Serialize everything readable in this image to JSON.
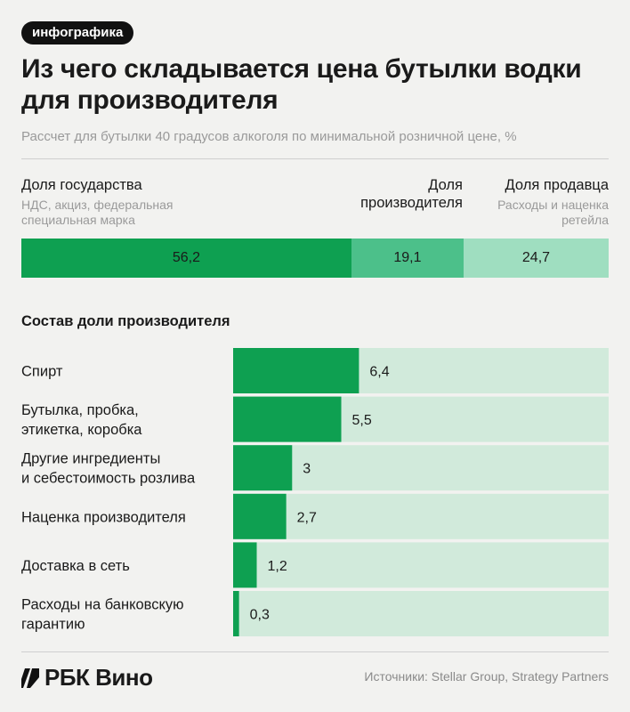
{
  "tag": "инфографика",
  "title": "Из чего складывается цена бутылки водки для производителя",
  "subtitle": "Рассчет для бутылки 40 градусов алкоголя по минимальной розничной цене, %",
  "colors": {
    "dark_green": "#0ea051",
    "mid_green": "#4cc08a",
    "light_green": "#9fdec0",
    "track": "#d1eadb"
  },
  "chart_data": [
    {
      "type": "bar",
      "orientation": "horizontal-stacked",
      "unit": "%",
      "categories": [
        "Доля государства",
        "Доля производителя",
        "Доля продавца"
      ],
      "category_notes": [
        "НДС, акциз, федеральная специальная марка",
        "",
        "Расходы и наценка ретейла"
      ],
      "values": [
        56.2,
        19.1,
        24.7
      ],
      "value_labels": [
        "56,2",
        "19,1",
        "24,7"
      ],
      "legend_lines": {
        "gov": [
          "Доля государства"
        ],
        "gov_sub": [
          "НДС, акциз, федеральная",
          "специальная марка"
        ],
        "prod": [
          "Доля",
          "производителя"
        ],
        "seller": [
          "Доля продавца"
        ],
        "seller_sub": [
          "Расходы и наценка",
          "ретейла"
        ]
      }
    },
    {
      "type": "bar",
      "orientation": "horizontal",
      "title": "Состав доли производителя",
      "categories": [
        "Спирт",
        "Бутылка, пробка, этикетка, коробка",
        "Другие ингредиенты и себестоимость розлива",
        "Наценка производителя",
        "Доставка в сеть",
        "Расходы на банковскую гарантию"
      ],
      "label_lines": [
        [
          "Спирт"
        ],
        [
          "Бутылка, пробка,",
          "этикетка, коробка"
        ],
        [
          "Другие ингредиенты",
          "и себестоимость розлива"
        ],
        [
          "Наценка производителя"
        ],
        [
          "Доставка в сеть"
        ],
        [
          "Расходы на банковскую",
          "гарантию"
        ]
      ],
      "values": [
        6.4,
        5.5,
        3,
        2.7,
        1.2,
        0.3
      ],
      "value_labels": [
        "6,4",
        "5,5",
        "3",
        "2,7",
        "1,2",
        "0,3"
      ],
      "xlim": [
        0,
        19.1
      ]
    }
  ],
  "footer": {
    "logo_text": "РБК Вино",
    "source": "Источники: Stellar Group, Strategy Partners"
  }
}
